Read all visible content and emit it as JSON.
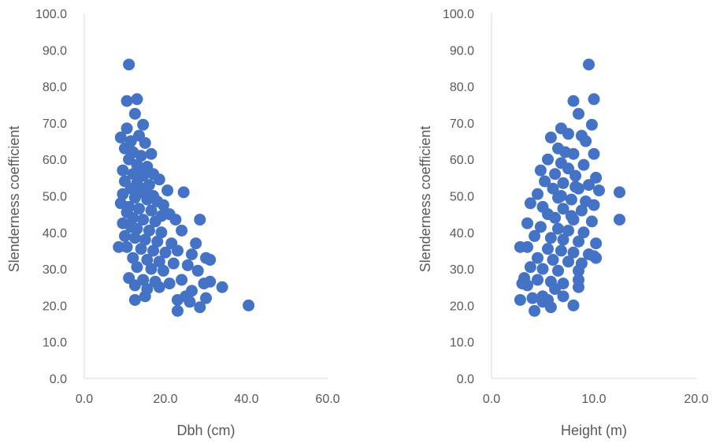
{
  "chart_data": [
    {
      "type": "scatter",
      "xlabel": "Dbh (cm)",
      "ylabel": "Slenderness coefficient",
      "xlim": [
        0,
        60
      ],
      "ylim": [
        0,
        100
      ],
      "x_ticks": [
        "0.0",
        "20.0",
        "40.0",
        "60.0"
      ],
      "y_ticks": [
        "0.0",
        "10.0",
        "20.0",
        "30.0",
        "40.0",
        "50.0",
        "60.0",
        "70.0",
        "80.0",
        "90.0",
        "100.0"
      ],
      "grid": false,
      "legend": "none",
      "marker_color": "#4472c4",
      "points": [
        [
          11.0,
          86.0
        ],
        [
          10.5,
          76.0
        ],
        [
          13.0,
          76.5
        ],
        [
          12.5,
          72.5
        ],
        [
          14.5,
          69.5
        ],
        [
          10.5,
          68.5
        ],
        [
          9.0,
          66.0
        ],
        [
          11.5,
          65.0
        ],
        [
          13.5,
          66.5
        ],
        [
          15.0,
          64.5
        ],
        [
          10.0,
          63.0
        ],
        [
          12.0,
          62.0
        ],
        [
          14.0,
          61.0
        ],
        [
          16.5,
          61.5
        ],
        [
          11.0,
          60.0
        ],
        [
          13.0,
          58.5
        ],
        [
          15.5,
          58.0
        ],
        [
          9.5,
          57.0
        ],
        [
          12.0,
          56.0
        ],
        [
          14.5,
          55.5
        ],
        [
          17.0,
          56.0
        ],
        [
          10.0,
          54.0
        ],
        [
          13.0,
          53.5
        ],
        [
          16.0,
          53.0
        ],
        [
          18.5,
          54.5
        ],
        [
          11.5,
          52.0
        ],
        [
          14.0,
          51.0
        ],
        [
          20.5,
          51.5
        ],
        [
          24.5,
          51.0
        ],
        [
          9.5,
          50.5
        ],
        [
          12.5,
          49.5
        ],
        [
          15.5,
          49.0
        ],
        [
          18.0,
          48.5
        ],
        [
          9.0,
          48.0
        ],
        [
          11.0,
          47.0
        ],
        [
          13.5,
          46.5
        ],
        [
          16.5,
          46.0
        ],
        [
          19.5,
          47.5
        ],
        [
          21.0,
          45.0
        ],
        [
          10.5,
          45.5
        ],
        [
          12.0,
          44.0
        ],
        [
          14.5,
          43.5
        ],
        [
          17.5,
          43.0
        ],
        [
          22.5,
          43.5
        ],
        [
          28.5,
          43.5
        ],
        [
          9.5,
          42.5
        ],
        [
          11.5,
          41.5
        ],
        [
          13.0,
          41.0
        ],
        [
          16.0,
          40.5
        ],
        [
          19.0,
          40.0
        ],
        [
          24.0,
          40.5
        ],
        [
          10.0,
          39.0
        ],
        [
          12.5,
          38.5
        ],
        [
          15.0,
          38.0
        ],
        [
          18.0,
          37.5
        ],
        [
          21.5,
          37.0
        ],
        [
          27.5,
          37.0
        ],
        [
          10.5,
          36.0
        ],
        [
          8.5,
          36.0
        ],
        [
          14.0,
          35.5
        ],
        [
          17.0,
          35.0
        ],
        [
          20.0,
          34.5
        ],
        [
          23.0,
          35.0
        ],
        [
          26.5,
          34.0
        ],
        [
          30.0,
          33.0
        ],
        [
          12.0,
          33.0
        ],
        [
          15.5,
          32.5
        ],
        [
          18.5,
          32.0
        ],
        [
          22.0,
          31.5
        ],
        [
          25.5,
          31.0
        ],
        [
          31.0,
          32.5
        ],
        [
          13.0,
          30.5
        ],
        [
          16.5,
          30.0
        ],
        [
          19.5,
          29.5
        ],
        [
          28.0,
          29.5
        ],
        [
          11.0,
          27.5
        ],
        [
          14.5,
          27.0
        ],
        [
          17.5,
          26.5
        ],
        [
          21.0,
          26.0
        ],
        [
          24.0,
          27.0
        ],
        [
          29.5,
          26.0
        ],
        [
          31.0,
          26.5
        ],
        [
          12.5,
          25.5
        ],
        [
          15.5,
          24.5
        ],
        [
          18.5,
          25.0
        ],
        [
          26.5,
          24.0
        ],
        [
          34.0,
          25.0
        ],
        [
          15.0,
          22.5
        ],
        [
          25.0,
          22.5
        ],
        [
          30.0,
          22.0
        ],
        [
          12.5,
          21.5
        ],
        [
          23.0,
          21.5
        ],
        [
          26.0,
          21.0
        ],
        [
          40.5,
          20.0
        ],
        [
          28.5,
          19.5
        ],
        [
          23.0,
          18.5
        ],
        [
          13.5,
          57.5
        ],
        [
          15.0,
          52.0
        ],
        [
          17.0,
          50.0
        ],
        [
          19.0,
          44.5
        ]
      ]
    },
    {
      "type": "scatter",
      "xlabel": "Height (m)",
      "ylabel": "Slenderness coefficient",
      "xlim": [
        0,
        20
      ],
      "ylim": [
        0,
        100
      ],
      "x_ticks": [
        "0.0",
        "10.0",
        "20.0"
      ],
      "y_ticks": [
        "0.0",
        "10.0",
        "20.0",
        "30.0",
        "40.0",
        "50.0",
        "60.0",
        "70.0",
        "80.0",
        "90.0",
        "100.0"
      ],
      "grid": false,
      "legend": "none",
      "marker_color": "#4472c4",
      "points": [
        [
          9.5,
          86.0
        ],
        [
          8.0,
          76.0
        ],
        [
          10.0,
          76.5
        ],
        [
          8.5,
          72.5
        ],
        [
          9.8,
          69.5
        ],
        [
          6.8,
          68.5
        ],
        [
          5.8,
          66.0
        ],
        [
          7.5,
          67.0
        ],
        [
          8.8,
          66.5
        ],
        [
          9.2,
          65.0
        ],
        [
          6.5,
          63.0
        ],
        [
          7.2,
          62.0
        ],
        [
          8.0,
          61.5
        ],
        [
          10.0,
          61.5
        ],
        [
          5.5,
          60.0
        ],
        [
          6.8,
          59.0
        ],
        [
          9.0,
          58.5
        ],
        [
          4.8,
          57.0
        ],
        [
          6.2,
          56.0
        ],
        [
          8.2,
          55.5
        ],
        [
          10.2,
          55.0
        ],
        [
          5.2,
          54.0
        ],
        [
          7.0,
          53.5
        ],
        [
          9.5,
          53.0
        ],
        [
          6.0,
          52.0
        ],
        [
          8.5,
          52.0
        ],
        [
          10.5,
          51.5
        ],
        [
          12.5,
          51.0
        ],
        [
          4.5,
          50.5
        ],
        [
          6.5,
          49.5
        ],
        [
          7.8,
          49.0
        ],
        [
          9.2,
          48.5
        ],
        [
          3.8,
          48.0
        ],
        [
          5.0,
          47.0
        ],
        [
          7.0,
          46.5
        ],
        [
          8.8,
          46.0
        ],
        [
          10.0,
          47.5
        ],
        [
          5.5,
          45.0
        ],
        [
          6.2,
          44.0
        ],
        [
          8.0,
          43.5
        ],
        [
          9.8,
          43.0
        ],
        [
          12.5,
          43.5
        ],
        [
          3.5,
          42.5
        ],
        [
          4.8,
          41.5
        ],
        [
          6.5,
          41.0
        ],
        [
          7.5,
          40.5
        ],
        [
          9.0,
          40.0
        ],
        [
          4.2,
          39.0
        ],
        [
          5.8,
          38.5
        ],
        [
          7.0,
          38.0
        ],
        [
          8.5,
          37.5
        ],
        [
          10.2,
          37.0
        ],
        [
          3.5,
          36.0
        ],
        [
          2.8,
          36.0
        ],
        [
          5.5,
          35.5
        ],
        [
          6.8,
          35.0
        ],
        [
          8.0,
          34.5
        ],
        [
          9.5,
          34.0
        ],
        [
          10.2,
          33.0
        ],
        [
          4.5,
          33.0
        ],
        [
          6.0,
          32.5
        ],
        [
          7.5,
          32.0
        ],
        [
          8.8,
          31.5
        ],
        [
          10.0,
          33.5
        ],
        [
          3.8,
          30.5
        ],
        [
          5.0,
          30.0
        ],
        [
          6.5,
          29.5
        ],
        [
          8.5,
          29.5
        ],
        [
          3.2,
          27.5
        ],
        [
          4.5,
          27.0
        ],
        [
          5.8,
          26.5
        ],
        [
          7.0,
          26.0
        ],
        [
          8.5,
          27.0
        ],
        [
          3.0,
          26.0
        ],
        [
          3.5,
          25.5
        ],
        [
          6.2,
          24.5
        ],
        [
          8.5,
          25.0
        ],
        [
          5.0,
          22.5
        ],
        [
          7.0,
          22.5
        ],
        [
          4.0,
          22.0
        ],
        [
          2.8,
          21.5
        ],
        [
          5.5,
          21.5
        ],
        [
          5.0,
          21.0
        ],
        [
          8.0,
          20.0
        ],
        [
          5.8,
          19.5
        ],
        [
          4.2,
          18.5
        ],
        [
          7.5,
          57.5
        ],
        [
          8.2,
          52.5
        ],
        [
          6.8,
          50.0
        ],
        [
          7.8,
          44.5
        ]
      ]
    }
  ]
}
